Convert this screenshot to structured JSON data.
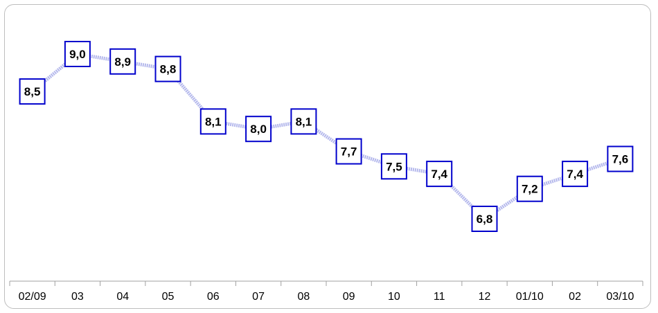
{
  "chart_data": {
    "type": "line",
    "categories": [
      "02/09",
      "03",
      "04",
      "05",
      "06",
      "07",
      "08",
      "09",
      "10",
      "11",
      "12",
      "01/10",
      "02",
      "03/10"
    ],
    "values": [
      8.5,
      9.0,
      8.9,
      8.8,
      8.1,
      8.0,
      8.1,
      7.7,
      7.5,
      7.4,
      6.8,
      7.2,
      7.4,
      7.6
    ],
    "data_labels": [
      "8,5",
      "9,0",
      "8,9",
      "8,8",
      "8,1",
      "8,0",
      "8,1",
      "7,7",
      "7,5",
      "7,4",
      "6,8",
      "7,2",
      "7,4",
      "7,6"
    ],
    "grid": false,
    "legend": "none",
    "colors": {
      "line": "#b4b8ec",
      "label_border": "#0000cc",
      "label_fill": "#ffffff",
      "axis": "#a0a0a0"
    }
  }
}
